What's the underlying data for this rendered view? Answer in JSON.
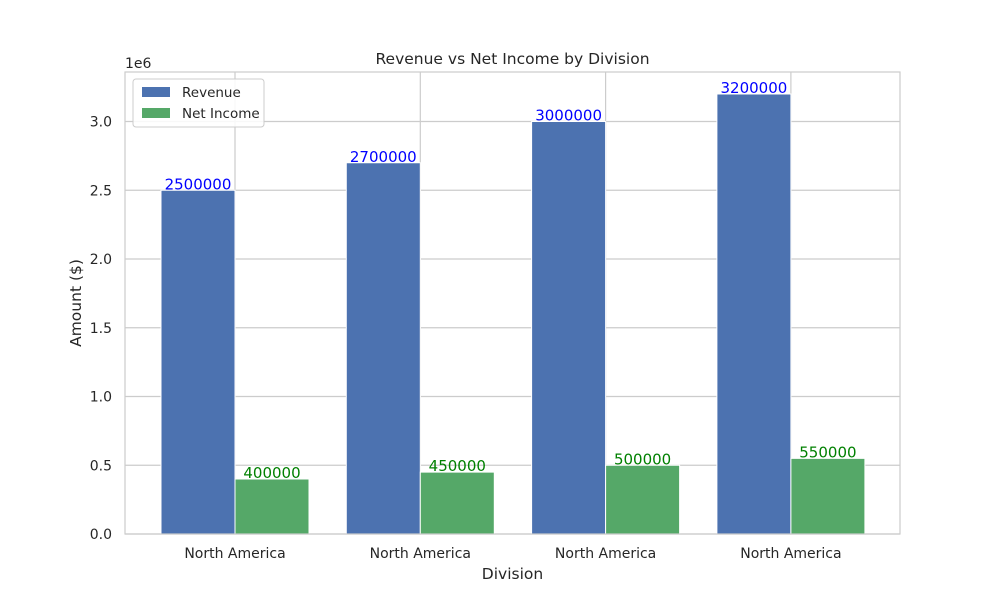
{
  "chart_data": {
    "type": "bar",
    "title": "Revenue vs Net Income by Division",
    "xlabel": "Division",
    "ylabel": "Amount ($)",
    "y_offset_label": "1e6",
    "categories": [
      "North America",
      "North America",
      "North America",
      "North America"
    ],
    "series": [
      {
        "name": "Revenue",
        "color": "#4c72b0",
        "label_color": "#0000ff",
        "values": [
          2500000,
          2700000,
          3000000,
          3200000
        ]
      },
      {
        "name": "Net Income",
        "color": "#55a868",
        "label_color": "#008000",
        "values": [
          400000,
          450000,
          500000,
          550000
        ]
      }
    ],
    "ylim": [
      0,
      3360000
    ],
    "yticks": [
      0,
      500000,
      1000000,
      1500000,
      2000000,
      2500000,
      3000000
    ],
    "ytick_labels": [
      "0.0",
      "0.5",
      "1.0",
      "1.5",
      "2.0",
      "2.5",
      "3.0"
    ],
    "grid": true,
    "legend_position": "top-left"
  }
}
